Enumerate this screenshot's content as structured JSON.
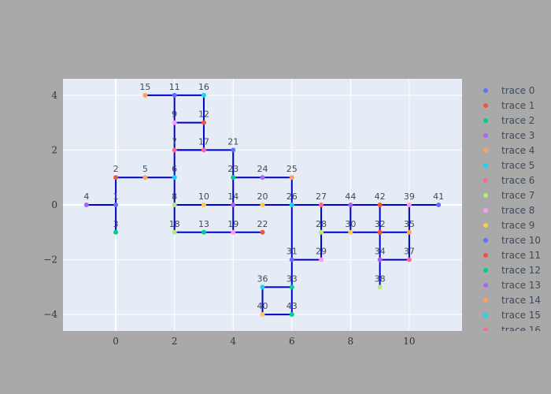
{
  "chart_data": {
    "type": "scatter",
    "title": "",
    "xlabel": "",
    "ylabel": "",
    "xlim": [
      -1.8,
      11.8
    ],
    "ylim": [
      -4.6,
      4.6
    ],
    "x_ticks": [
      0,
      2,
      4,
      6,
      8,
      10
    ],
    "y_ticks": [
      -4,
      -2,
      0,
      2,
      4
    ],
    "x_tick_labels": [
      "0",
      "2",
      "4",
      "6",
      "8",
      "10"
    ],
    "y_tick_labels": [
      "−4",
      "−2",
      "0",
      "2",
      "4"
    ],
    "grid": true,
    "legend_position": "right",
    "nodes": [
      {
        "label": "1",
        "x": 0,
        "y": 0
      },
      {
        "label": "2",
        "x": 0,
        "y": 1
      },
      {
        "label": "3",
        "x": 0,
        "y": -1
      },
      {
        "label": "4",
        "x": -1,
        "y": 0
      },
      {
        "label": "5",
        "x": 1,
        "y": 1
      },
      {
        "label": "6",
        "x": 2,
        "y": 1
      },
      {
        "label": "7",
        "x": 2,
        "y": 2
      },
      {
        "label": "8",
        "x": 2,
        "y": 0
      },
      {
        "label": "9",
        "x": 2,
        "y": 3
      },
      {
        "label": "10",
        "x": 3,
        "y": 0
      },
      {
        "label": "11",
        "x": 2,
        "y": 4
      },
      {
        "label": "12",
        "x": 3,
        "y": 3
      },
      {
        "label": "13",
        "x": 3,
        "y": -1
      },
      {
        "label": "14",
        "x": 4,
        "y": 0
      },
      {
        "label": "15",
        "x": 1,
        "y": 4
      },
      {
        "label": "16",
        "x": 3,
        "y": 4
      },
      {
        "label": "17",
        "x": 3,
        "y": 2
      },
      {
        "label": "18",
        "x": 2,
        "y": -1
      },
      {
        "label": "19",
        "x": 4,
        "y": -1
      },
      {
        "label": "20",
        "x": 5,
        "y": 0
      },
      {
        "label": "21",
        "x": 4,
        "y": 2
      },
      {
        "label": "22",
        "x": 5,
        "y": -1
      },
      {
        "label": "23",
        "x": 4,
        "y": 1
      },
      {
        "label": "24",
        "x": 5,
        "y": 1
      },
      {
        "label": "25",
        "x": 6,
        "y": 1
      },
      {
        "label": "26",
        "x": 6,
        "y": 0
      },
      {
        "label": "27",
        "x": 7,
        "y": 0
      },
      {
        "label": "28",
        "x": 7,
        "y": -1
      },
      {
        "label": "29",
        "x": 7,
        "y": -2
      },
      {
        "label": "30",
        "x": 8,
        "y": -1
      },
      {
        "label": "31",
        "x": 6,
        "y": -2
      },
      {
        "label": "32",
        "x": 9,
        "y": -1
      },
      {
        "label": "33",
        "x": 6,
        "y": -3
      },
      {
        "label": "34",
        "x": 9,
        "y": -2
      },
      {
        "label": "35",
        "x": 10,
        "y": -1
      },
      {
        "label": "36",
        "x": 5,
        "y": -3
      },
      {
        "label": "37",
        "x": 10,
        "y": -2
      },
      {
        "label": "38",
        "x": 9,
        "y": -3
      },
      {
        "label": "39",
        "x": 10,
        "y": 0
      },
      {
        "label": "40",
        "x": 5,
        "y": -4
      },
      {
        "label": "41",
        "x": 11,
        "y": 0
      },
      {
        "label": "42",
        "x": 9,
        "y": 0
      },
      {
        "label": "43",
        "x": 6,
        "y": -4
      },
      {
        "label": "44",
        "x": 8,
        "y": 0
      }
    ],
    "edges": [
      [
        "4",
        "1"
      ],
      [
        "1",
        "2"
      ],
      [
        "1",
        "3"
      ],
      [
        "2",
        "5"
      ],
      [
        "5",
        "6"
      ],
      [
        "6",
        "8"
      ],
      [
        "6",
        "7"
      ],
      [
        "7",
        "9"
      ],
      [
        "9",
        "11"
      ],
      [
        "11",
        "15"
      ],
      [
        "11",
        "16"
      ],
      [
        "16",
        "12"
      ],
      [
        "12",
        "9"
      ],
      [
        "12",
        "17"
      ],
      [
        "17",
        "7"
      ],
      [
        "7",
        "21"
      ],
      [
        "21",
        "23"
      ],
      [
        "23",
        "14"
      ],
      [
        "23",
        "24"
      ],
      [
        "24",
        "25"
      ],
      [
        "25",
        "26"
      ],
      [
        "8",
        "10"
      ],
      [
        "10",
        "14"
      ],
      [
        "14",
        "20"
      ],
      [
        "20",
        "26"
      ],
      [
        "8",
        "18"
      ],
      [
        "18",
        "13"
      ],
      [
        "13",
        "19"
      ],
      [
        "19",
        "22"
      ],
      [
        "14",
        "19"
      ],
      [
        "26",
        "27"
      ],
      [
        "27",
        "44"
      ],
      [
        "44",
        "42"
      ],
      [
        "42",
        "39"
      ],
      [
        "39",
        "41"
      ],
      [
        "26",
        "31"
      ],
      [
        "31",
        "29"
      ],
      [
        "29",
        "28"
      ],
      [
        "28",
        "27"
      ],
      [
        "28",
        "30"
      ],
      [
        "30",
        "32"
      ],
      [
        "32",
        "35"
      ],
      [
        "35",
        "37"
      ],
      [
        "37",
        "34"
      ],
      [
        "34",
        "32"
      ],
      [
        "32",
        "42"
      ],
      [
        "35",
        "39"
      ],
      [
        "44",
        "30"
      ],
      [
        "31",
        "33"
      ],
      [
        "33",
        "36"
      ],
      [
        "36",
        "40"
      ],
      [
        "40",
        "43"
      ],
      [
        "43",
        "33"
      ],
      [
        "34",
        "38"
      ]
    ],
    "series": [
      {
        "name": "trace 0"
      },
      {
        "name": "trace 1"
      },
      {
        "name": "trace 2"
      },
      {
        "name": "trace 3"
      },
      {
        "name": "trace 4"
      },
      {
        "name": "trace 5"
      },
      {
        "name": "trace 6"
      },
      {
        "name": "trace 7"
      },
      {
        "name": "trace 8"
      },
      {
        "name": "trace 9"
      },
      {
        "name": "trace 10"
      },
      {
        "name": "trace 11"
      },
      {
        "name": "trace 12"
      },
      {
        "name": "trace 13"
      },
      {
        "name": "trace 14"
      },
      {
        "name": "trace 15"
      },
      {
        "name": "trace 16"
      }
    ],
    "colors": {
      "background": "#a9a9a9",
      "plot_bg": "#e5ecf6",
      "edge": "#0000cc",
      "palette": [
        "#636efa",
        "#ef553b",
        "#00cc96",
        "#ab63fa",
        "#ffa15a",
        "#19d3f3",
        "#ff6692",
        "#b6e880",
        "#ff97ff",
        "#fecb52"
      ]
    }
  }
}
